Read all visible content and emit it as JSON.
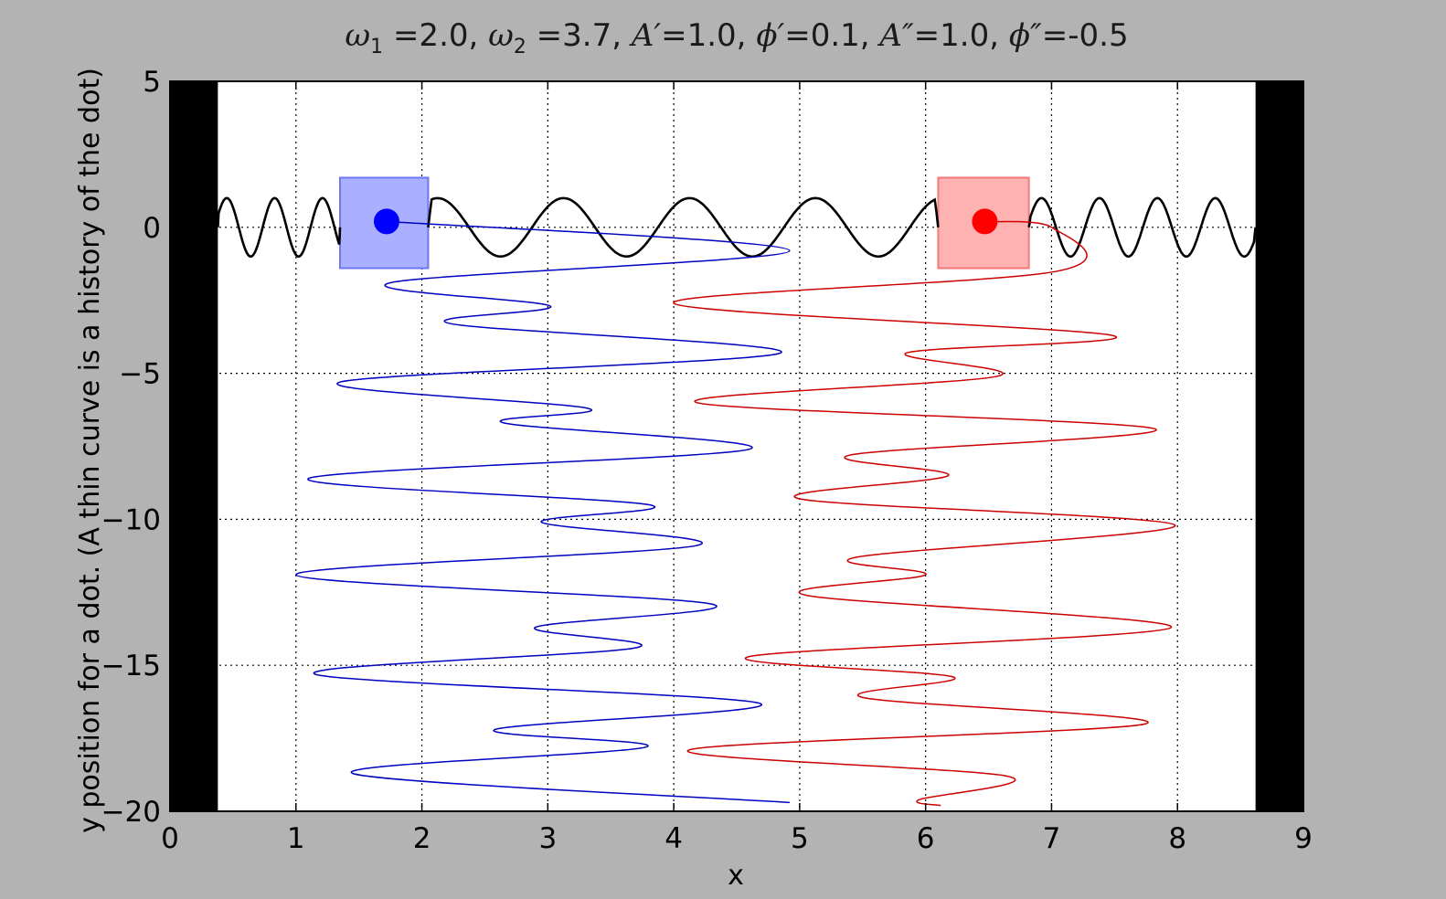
{
  "chart_data": {
    "type": "line",
    "title_parts": [
      {
        "math": "ω",
        "sub": "1",
        "rest": " =2.0, "
      },
      {
        "math": "ω",
        "sub": "2",
        "rest": " =3.7, "
      },
      {
        "math": "A′",
        "rest": "=1.0, "
      },
      {
        "math": "ϕ′",
        "rest": "=0.1, "
      },
      {
        "math": "A″",
        "rest": "=1.0, "
      },
      {
        "math": "ϕ″",
        "rest": "=-0.5"
      }
    ],
    "xlabel": "x",
    "ylabel": "y position for a dot. (A thin curve is a history of the dot)",
    "xlim": [
      0,
      9
    ],
    "ylim": [
      -20,
      5
    ],
    "xticks": [
      0,
      1,
      2,
      3,
      4,
      5,
      6,
      7,
      8,
      9
    ],
    "xtick_labels": [
      "0",
      "1",
      "2",
      "3",
      "4",
      "5",
      "6",
      "7",
      "8",
      "9"
    ],
    "yticks": [
      5,
      0,
      -5,
      -10,
      -15,
      -20
    ],
    "ytick_labels": [
      "5",
      "0",
      "−5",
      "−10",
      "−15",
      "−20"
    ],
    "grid": true,
    "walls": [
      {
        "name": "left-wall",
        "x_range": [
          0,
          0.38
        ],
        "color": "#000000"
      },
      {
        "name": "right-wall",
        "x_range": [
          8.62,
          9
        ],
        "color": "#000000"
      }
    ],
    "string": {
      "color": "#000000",
      "amplitude": 1.0,
      "x_range": [
        0.38,
        8.62
      ]
    },
    "masses": [
      {
        "name": "blue",
        "x": 1.72,
        "y": 0.2,
        "box_x": [
          1.35,
          2.05
        ],
        "box_y": [
          -1.4,
          1.7
        ],
        "box_color": "#aab0ff",
        "box_edge": "#6d78f2",
        "dot_color": "#0000ff"
      },
      {
        "name": "red",
        "x": 6.47,
        "y": 0.2,
        "box_x": [
          6.1,
          6.82
        ],
        "box_y": [
          -1.4,
          1.7
        ],
        "box_color": "#ffb2b2",
        "box_edge": "#f27a7a",
        "dot_color": "#ff0000"
      }
    ],
    "series": [
      {
        "name": "blue",
        "color": "#0000bf",
        "x": [
          1.72,
          4.92,
          1.75,
          3.02,
          2.23,
          4.85,
          1.35,
          3.32,
          2.65,
          4.6,
          1.1,
          3.8,
          2.95,
          4.18,
          1.0,
          4.3,
          2.9,
          3.7,
          1.15,
          4.68,
          2.58,
          3.78,
          1.45,
          4.92
        ],
        "y": [
          0.2,
          -0.8,
          -1.9,
          -2.7,
          -3.3,
          -4.3,
          -5.3,
          -6.2,
          -6.7,
          -7.6,
          -8.6,
          -9.5,
          -10.1,
          -10.9,
          -11.9,
          -12.9,
          -13.7,
          -14.4,
          -15.3,
          -16.3,
          -17.2,
          -17.8,
          -18.7,
          -19.7
        ]
      },
      {
        "name": "red",
        "color": "#cc0000",
        "x": [
          6.47,
          7.0,
          7.05,
          4.0,
          7.48,
          5.85,
          6.57,
          4.18,
          7.82,
          5.4,
          6.18,
          5.0,
          7.98,
          5.45,
          6.0,
          5.05,
          7.95,
          4.6,
          6.22,
          5.5,
          7.75,
          4.12,
          6.65,
          5.95,
          6.12
        ],
        "y": [
          0.2,
          0.0,
          -1.5,
          -2.6,
          -3.7,
          -4.3,
          -5.1,
          -6.0,
          -6.9,
          -7.8,
          -8.5,
          -9.3,
          -10.2,
          -11.3,
          -11.9,
          -12.6,
          -13.7,
          -14.7,
          -15.4,
          -16.1,
          -17.0,
          -17.9,
          -18.8,
          -19.6,
          -19.8
        ]
      }
    ]
  }
}
